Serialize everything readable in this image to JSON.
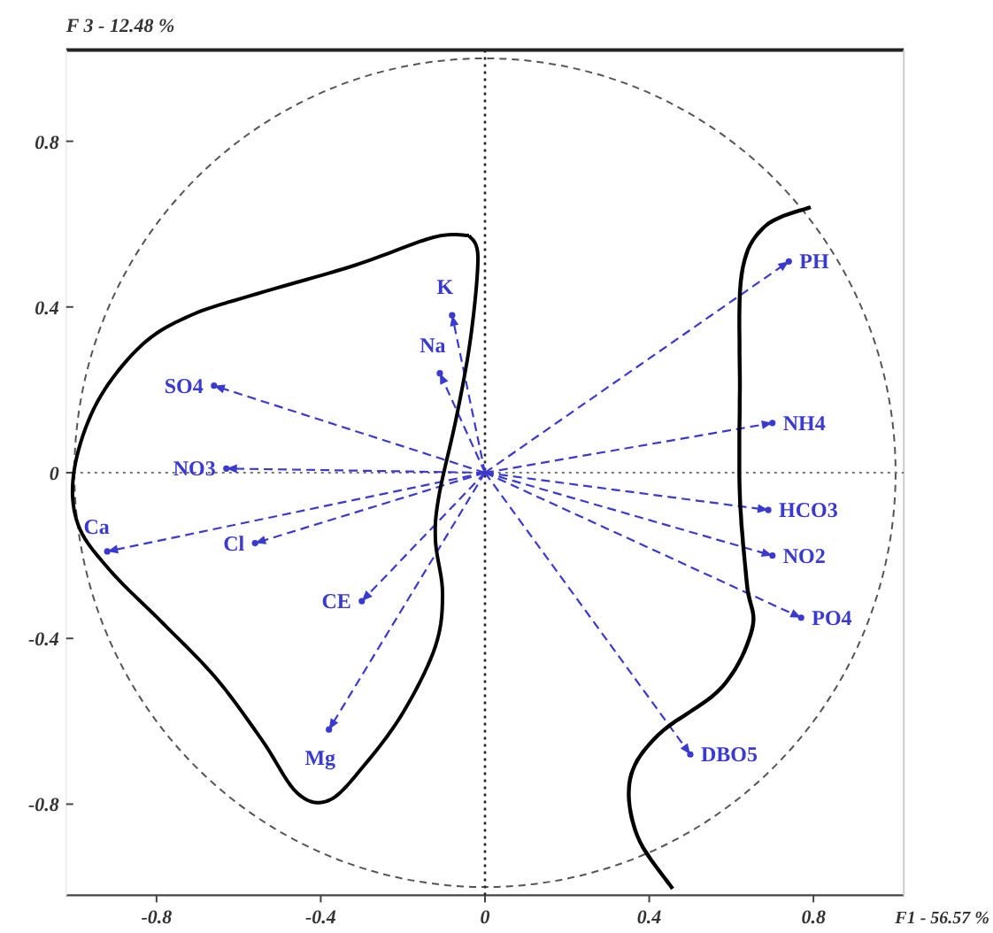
{
  "chart_data": {
    "type": "scatter",
    "xlabel": "F1 - 56.57 %",
    "ylabel": "F 3 - 12.48 %",
    "xlim": [
      -1.02,
      1.02
    ],
    "ylim": [
      -1.02,
      1.02
    ],
    "xticks": [
      {
        "value": -0.8,
        "label": "-0.8"
      },
      {
        "value": -0.4,
        "label": "-0.4"
      },
      0,
      {
        "value": 0.4,
        "label": "0.4"
      },
      {
        "value": 0.8,
        "label": "0.8"
      }
    ],
    "yticks": [
      {
        "value": -0.8,
        "label": "-0.8"
      },
      {
        "value": -0.4,
        "label": "-0.4"
      },
      0,
      {
        "value": 0.4,
        "label": "0.4"
      },
      {
        "value": 0.8,
        "label": "0.8"
      }
    ],
    "ref_lines": [
      {
        "axis": "x",
        "value": 0,
        "line_style": "dotted",
        "color": "#222222"
      },
      {
        "axis": "y",
        "value": 0,
        "line_style": "dotted",
        "color": "#777777"
      }
    ],
    "marker": "circle",
    "grid": false,
    "series": [
      {
        "color": "#3a3ad0",
        "x": [
          0.74,
          0.7,
          0.69,
          0.7,
          0.77,
          0.5,
          -0.38,
          -0.3,
          -0.56,
          -0.92,
          -0.63,
          -0.66,
          -0.11,
          -0.08
        ],
        "values": [
          0.51,
          0.12,
          -0.09,
          -0.2,
          -0.35,
          -0.68,
          -0.62,
          -0.31,
          -0.17,
          -0.19,
          0.01,
          0.21,
          0.24,
          0.38
        ]
      }
    ],
    "annotations": [
      {
        "text": "PH",
        "x": 0.74,
        "y": 0.51
      },
      {
        "text": "NH4",
        "x": 0.7,
        "y": 0.12
      },
      {
        "text": "HCO3",
        "x": 0.69,
        "y": -0.09
      },
      {
        "text": "NO2",
        "x": 0.7,
        "y": -0.2
      },
      {
        "text": "PO4",
        "x": 0.77,
        "y": -0.35
      },
      {
        "text": "DBO5",
        "x": 0.5,
        "y": -0.68
      },
      {
        "text": "Mg",
        "x": -0.38,
        "y": -0.62
      },
      {
        "text": "CE",
        "x": -0.3,
        "y": -0.31
      },
      {
        "text": "Cl",
        "x": -0.56,
        "y": -0.17
      },
      {
        "text": "Ca",
        "x": -0.92,
        "y": -0.19
      },
      {
        "text": "NO3",
        "x": -0.63,
        "y": 0.01
      },
      {
        "text": "SO4",
        "x": -0.66,
        "y": 0.21
      },
      {
        "text": "Na",
        "x": -0.11,
        "y": 0.24
      },
      {
        "text": "K",
        "x": -0.08,
        "y": 0.38
      }
    ]
  }
}
